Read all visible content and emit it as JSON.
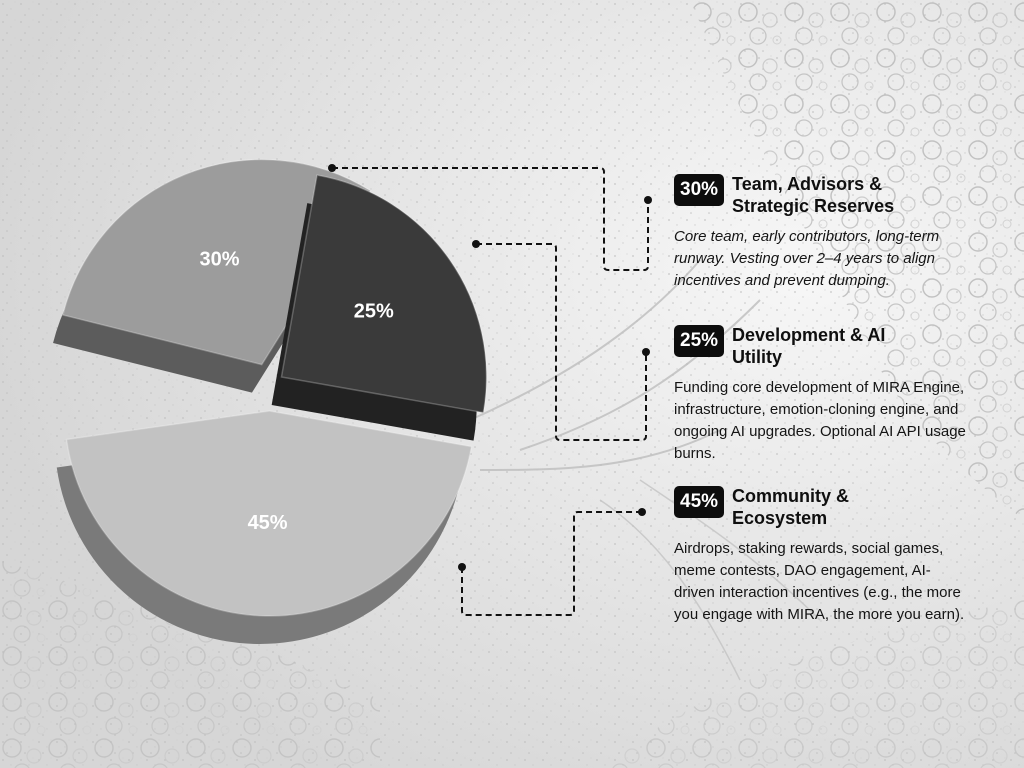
{
  "chart_data": {
    "type": "pie",
    "categories": [
      "Team, Advisors & Strategic Reserves",
      "Development & AI Utility",
      "Community & Ecosystem"
    ],
    "values": [
      30,
      25,
      45
    ],
    "value_labels": [
      "30%",
      "25%",
      "45%"
    ],
    "colors": [
      "#9c9c9c",
      "#3a3a3a",
      "#c2c2c2"
    ]
  },
  "legend": [
    {
      "badge": "30%",
      "title": "Team, Advisors & Strategic Reserves",
      "description": "Core team, early contributors, long-term runway. Vesting over 2–4 years to align incentives and prevent dumping."
    },
    {
      "badge": "25%",
      "title": "Development & AI Utility",
      "description": "Funding core development of MIRA Engine, infrastructure, emotion-cloning engine, and ongoing AI upgrades. Optional AI API usage burns."
    },
    {
      "badge": "45%",
      "title": "Community & Ecosystem",
      "description": "Airdrops, staking rewards, social games, meme contests, DAO engagement, AI-driven interaction incentives (e.g., the more you engage with MIRA, the more you earn)."
    }
  ]
}
